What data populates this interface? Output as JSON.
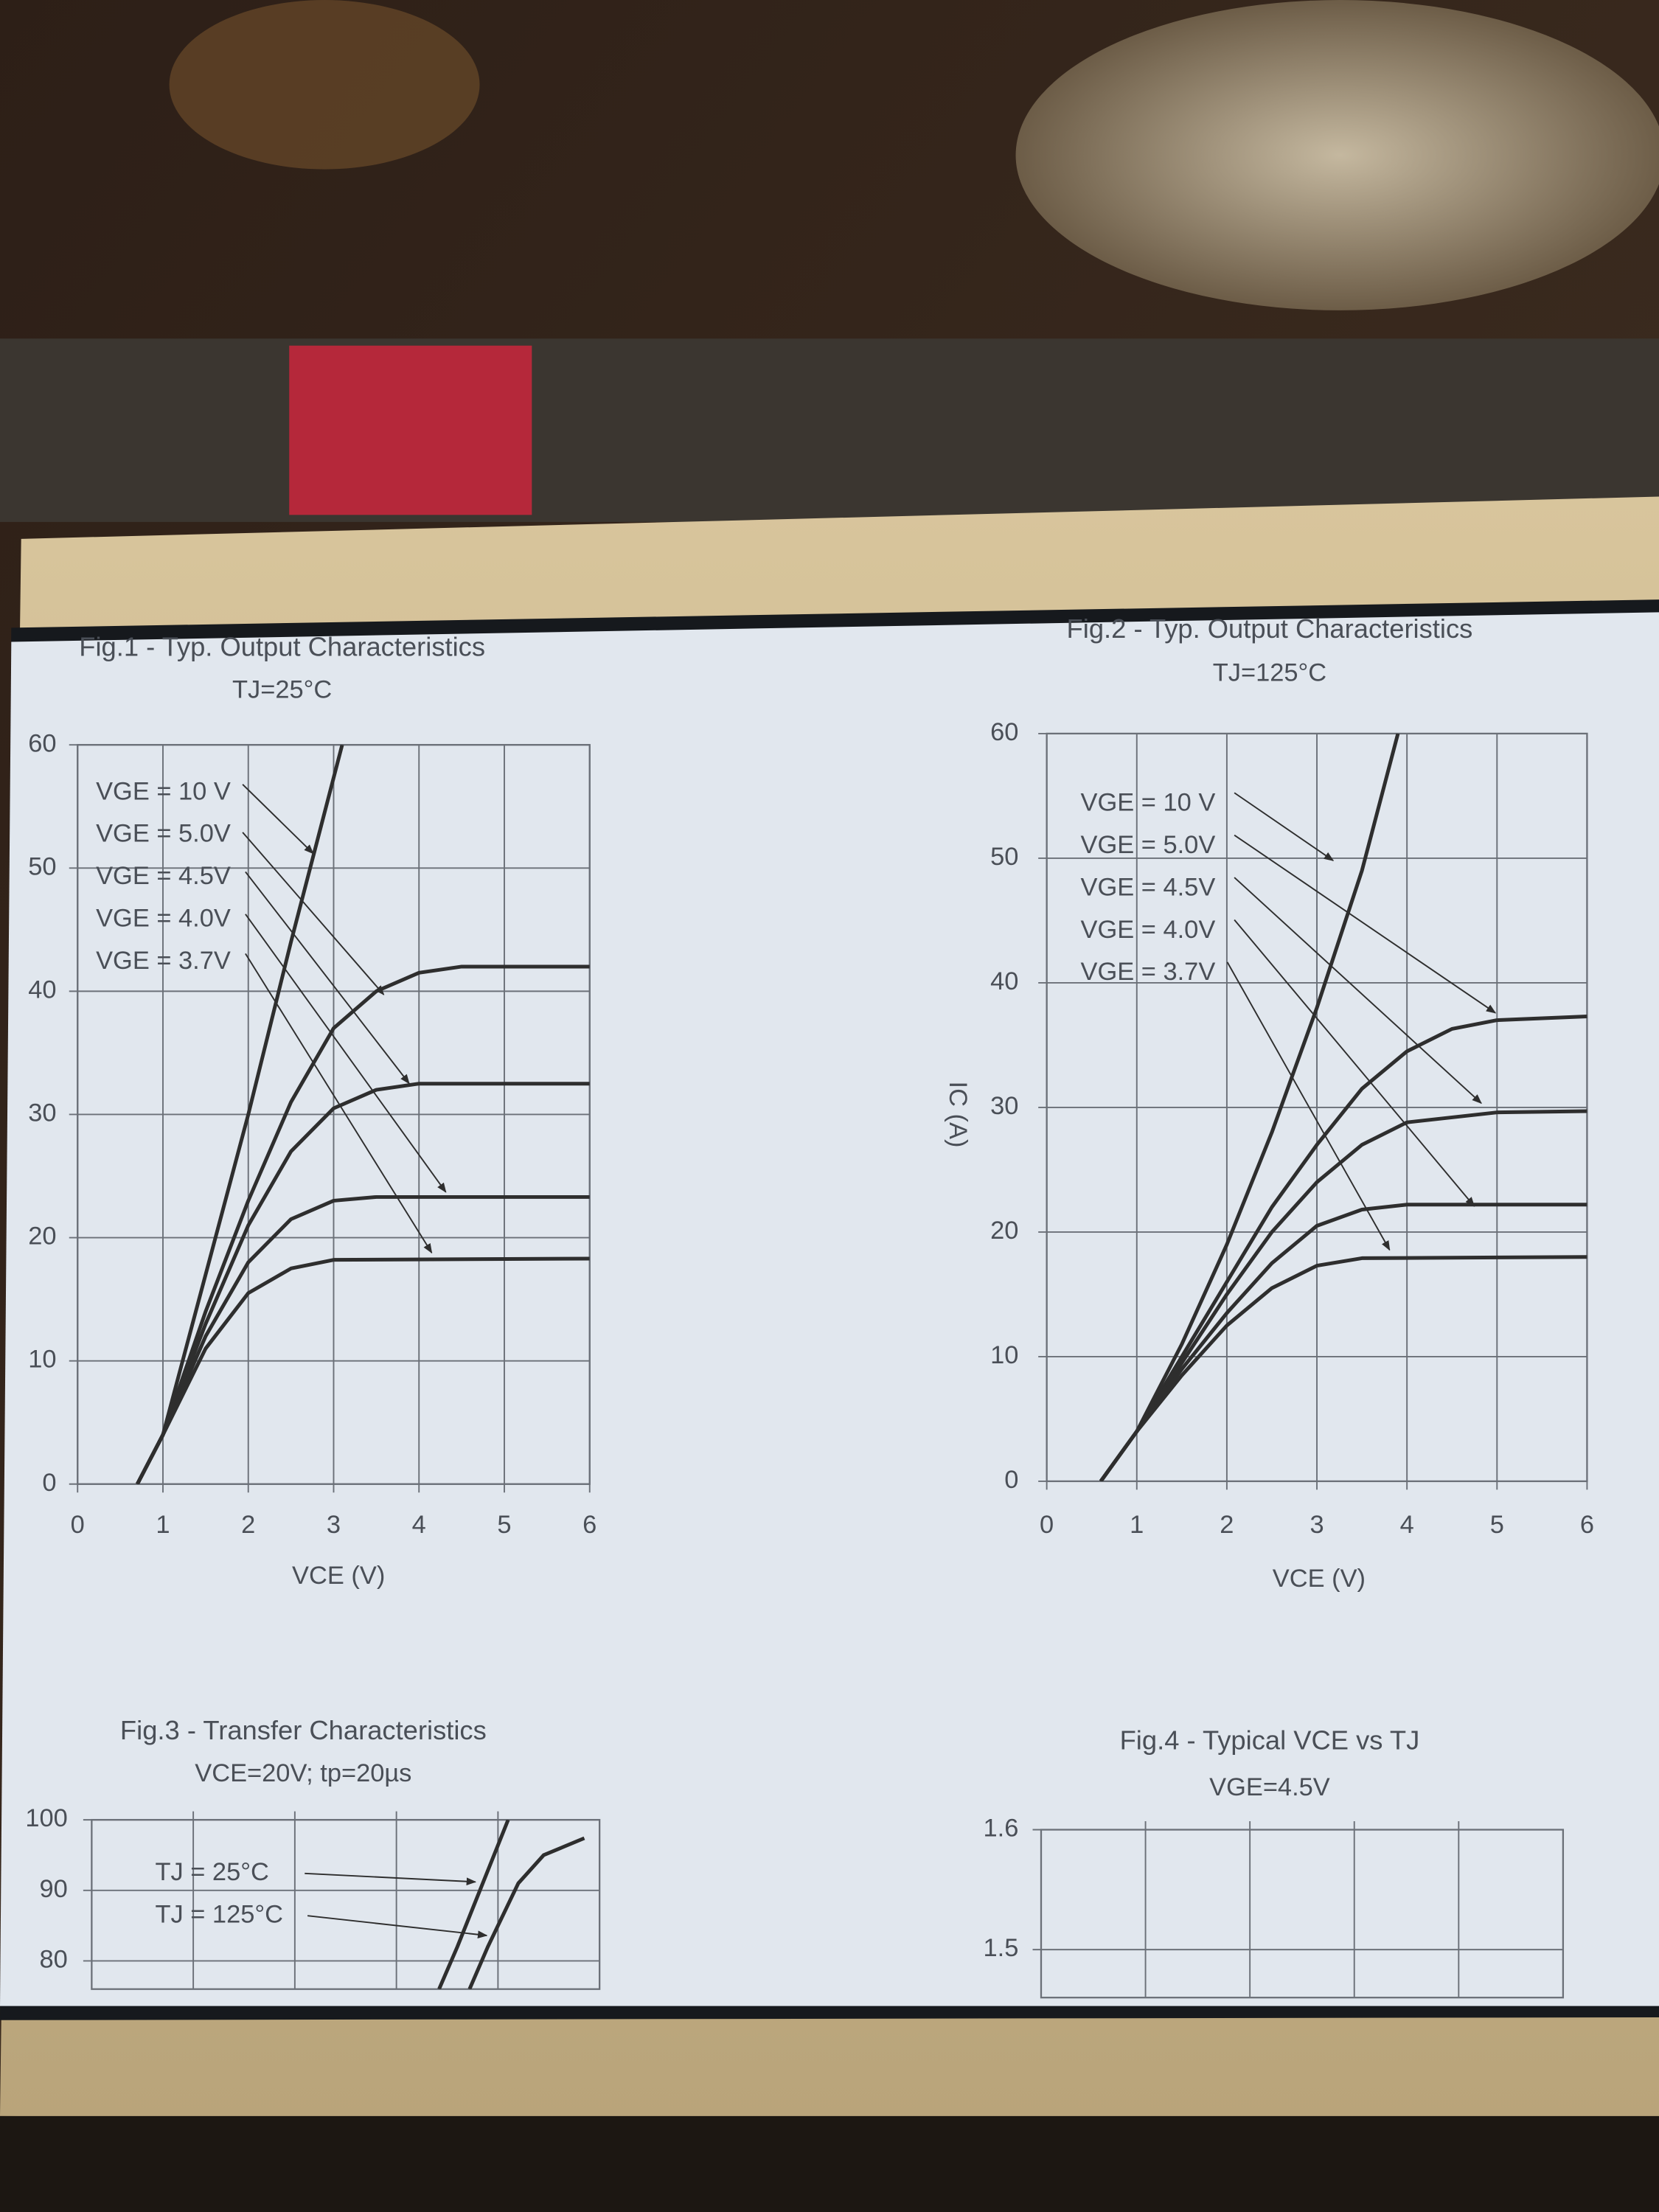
{
  "chart_data": [
    {
      "type": "line",
      "title": "Fig.1 - Typ. Output Characteristics",
      "subtitle": "TJ=25°C",
      "x_label": "VCE (V)",
      "xlim": [
        0,
        6
      ],
      "xticks": [
        0,
        1,
        2,
        3,
        4,
        5,
        6
      ],
      "ylim": [
        0,
        60
      ],
      "yticks": [
        0,
        10,
        20,
        30,
        40,
        50,
        60
      ],
      "grid": true,
      "series": [
        {
          "name": "VGE = 10 V",
          "color": "#2e2e2e",
          "x": [
            0.7,
            1,
            1.5,
            2,
            2.5,
            3.1
          ],
          "values": [
            0,
            4,
            17,
            30,
            44,
            60
          ]
        },
        {
          "name": "VGE = 5.0V",
          "color": "#2e2e2e",
          "x": [
            0.7,
            1,
            1.5,
            2,
            2.5,
            3,
            3.5,
            4,
            4.5,
            6
          ],
          "values": [
            0,
            4,
            14,
            23,
            31,
            37,
            40,
            41.5,
            42,
            42
          ]
        },
        {
          "name": "VGE = 4.5V",
          "color": "#2e2e2e",
          "x": [
            0.7,
            1,
            1.5,
            2,
            2.5,
            3,
            3.5,
            4,
            6
          ],
          "values": [
            0,
            4,
            13,
            21,
            27,
            30.5,
            32,
            32.5,
            32.5
          ]
        },
        {
          "name": "VGE = 4.0V",
          "color": "#2e2e2e",
          "x": [
            0.7,
            1,
            1.5,
            2,
            2.5,
            3,
            3.5,
            6
          ],
          "values": [
            0,
            4,
            12,
            18,
            21.5,
            23,
            23.3,
            23.3
          ]
        },
        {
          "name": "VGE = 3.7V",
          "color": "#2e2e2e",
          "x": [
            0.7,
            1,
            1.5,
            2,
            2.5,
            3,
            6
          ],
          "values": [
            0,
            4,
            11,
            15.5,
            17.5,
            18.2,
            18.3
          ]
        }
      ]
    },
    {
      "type": "line",
      "title": "Fig.2 - Typ. Output Characteristics",
      "subtitle": "TJ=125°C",
      "x_label": "VCE (V)",
      "y_label": "IC (A)",
      "xlim": [
        0,
        6
      ],
      "xticks": [
        0,
        1,
        2,
        3,
        4,
        5,
        6
      ],
      "ylim": [
        0,
        60
      ],
      "yticks": [
        0,
        10,
        20,
        30,
        40,
        50,
        60
      ],
      "grid": true,
      "series": [
        {
          "name": "VGE = 10 V",
          "color": "#2e2e2e",
          "x": [
            0.6,
            1,
            1.5,
            2,
            2.5,
            3,
            3.5,
            3.9
          ],
          "values": [
            0,
            4,
            11,
            19,
            28,
            38,
            49,
            60
          ]
        },
        {
          "name": "VGE = 5.0V",
          "color": "#2e2e2e",
          "x": [
            0.6,
            1,
            1.5,
            2,
            2.5,
            3,
            3.5,
            4,
            4.5,
            5,
            6
          ],
          "values": [
            0,
            4,
            10,
            16,
            22,
            27,
            31.5,
            34.5,
            36.3,
            37,
            37.3
          ]
        },
        {
          "name": "VGE = 4.5V",
          "color": "#2e2e2e",
          "x": [
            0.6,
            1,
            1.5,
            2,
            2.5,
            3,
            3.5,
            4,
            5,
            6
          ],
          "values": [
            0,
            4,
            9.5,
            15,
            20,
            24,
            27,
            28.8,
            29.6,
            29.7
          ]
        },
        {
          "name": "VGE = 4.0V",
          "color": "#2e2e2e",
          "x": [
            0.6,
            1,
            1.5,
            2,
            2.5,
            3,
            3.5,
            4,
            6
          ],
          "values": [
            0,
            4,
            9,
            13.5,
            17.5,
            20.5,
            21.8,
            22.2,
            22.2
          ]
        },
        {
          "name": "VGE = 3.7V",
          "color": "#2e2e2e",
          "x": [
            0.6,
            1,
            1.5,
            2,
            2.5,
            3,
            3.5,
            6
          ],
          "values": [
            0,
            4,
            8.5,
            12.5,
            15.5,
            17.3,
            17.9,
            18
          ]
        }
      ]
    },
    {
      "type": "line",
      "title": "Fig.3 - Transfer Characteristics",
      "subtitle": "VCE=20V; tp=20µs",
      "xlim": [
        0,
        5
      ],
      "ylim": [
        76,
        100
      ],
      "yticks": [
        80,
        90,
        100
      ],
      "grid": true,
      "series": [
        {
          "name": "TJ = 25°C",
          "color": "#2e2e2e",
          "x": [
            3.42,
            3.6,
            3.85,
            4.1
          ],
          "values": [
            76,
            82,
            91,
            100
          ]
        },
        {
          "name": "TJ = 125°C",
          "color": "#2e2e2e",
          "x": [
            3.72,
            3.9,
            4.2,
            4.45,
            4.85
          ],
          "values": [
            76,
            82,
            91,
            95,
            97.4
          ]
        }
      ]
    },
    {
      "type": "line",
      "title": "Fig.4 - Typical VCE vs TJ",
      "subtitle": "VGE=4.5V",
      "ylim": [
        1.46,
        1.6
      ],
      "yticks": [
        1.5,
        1.6
      ],
      "grid": true,
      "series": []
    }
  ]
}
